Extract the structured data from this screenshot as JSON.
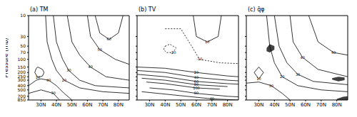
{
  "chart_data": [
    {
      "type": "contour",
      "title": "(a) TM",
      "ylabel": "Pressure (mb)",
      "log": "y",
      "xlim": [
        22,
        87
      ],
      "ylim": [
        10,
        850
      ],
      "xticks": [
        {
          "value": 30,
          "label": "30N"
        },
        {
          "value": 40,
          "label": "40N"
        },
        {
          "value": 50,
          "label": "50N"
        },
        {
          "value": 60,
          "label": "60N"
        },
        {
          "value": 70,
          "label": "70N"
        },
        {
          "value": 80,
          "label": "80N"
        }
      ],
      "yticks": [
        10,
        30,
        50,
        70,
        100,
        150,
        200,
        250,
        300,
        400,
        500,
        700,
        850
      ],
      "color": "#000000",
      "series": [
        {
          "level": 10,
          "line_style": "solid",
          "lat": [
            28,
            31,
            32,
            31,
            28,
            26,
            27,
            28
          ],
          "p": [
            150,
            170,
            200,
            240,
            260,
            200,
            160,
            150
          ]
        },
        {
          "level": 20,
          "line_style": "solid",
          "lat": [
            33,
            34,
            37,
            40,
            45,
            55,
            70,
            87
          ],
          "p": [
            10,
            40,
            100,
            180,
            300,
            450,
            550,
            600
          ]
        },
        {
          "level": 30,
          "line_style": "solid",
          "lat": [
            38,
            40,
            44,
            48,
            55,
            65,
            87
          ],
          "p": [
            10,
            40,
            100,
            180,
            300,
            400,
            450
          ]
        },
        {
          "level": 40,
          "line_style": "solid",
          "lat": [
            47,
            50,
            55,
            62,
            72,
            87
          ],
          "p": [
            10,
            40,
            80,
            150,
            250,
            300
          ]
        },
        {
          "level": 50,
          "line_style": "solid",
          "lat": [
            60,
            62,
            68,
            78,
            87
          ],
          "p": [
            10,
            30,
            60,
            100,
            130
          ]
        },
        {
          "level": 60,
          "line_style": "solid",
          "lat": [
            65,
            68,
            74,
            80,
            83
          ],
          "p": [
            10,
            25,
            35,
            25,
            10
          ]
        },
        {
          "level": 40,
          "line_style": "solid",
          "lat": [
            22,
            27,
            30,
            35,
            40,
            45,
            50
          ],
          "p": [
            400,
            300,
            280,
            300,
            400,
            600,
            850
          ]
        },
        {
          "level": 30,
          "line_style": "solid",
          "lat": [
            22,
            30,
            38,
            42
          ],
          "p": [
            600,
            500,
            600,
            850
          ]
        }
      ]
    },
    {
      "type": "contour",
      "title": "(b) TV",
      "log": "y",
      "tick_labels": "x",
      "xlim": [
        22,
        87
      ],
      "ylim": [
        10,
        850
      ],
      "xticks": [
        {
          "value": 30,
          "label": "30N"
        },
        {
          "value": 40,
          "label": "40N"
        },
        {
          "value": 50,
          "label": "50N"
        },
        {
          "value": 60,
          "label": "60N"
        },
        {
          "value": 70,
          "label": "70N"
        },
        {
          "value": 80,
          "label": "80N"
        }
      ],
      "yticks": [
        10,
        30,
        50,
        70,
        100,
        150,
        200,
        250,
        300,
        400,
        500,
        700,
        850
      ],
      "color": "#000000",
      "series": [
        {
          "level": -20,
          "line_style": "dashed",
          "lat": [
            40,
            43,
            47,
            45,
            41,
            39,
            40
          ],
          "p": [
            50,
            45,
            55,
            70,
            70,
            60,
            50
          ]
        },
        {
          "level": -10,
          "line_style": "dashed",
          "lat": [
            40,
            50,
            57,
            62,
            75,
            87
          ],
          "p": [
            20,
            20,
            50,
            100,
            120,
            125
          ]
        },
        {
          "level": 10,
          "line_style": "solid",
          "lat": [
            58,
            60,
            67,
            74,
            76
          ],
          "p": [
            10,
            30,
            40,
            30,
            10
          ]
        },
        {
          "level": 20,
          "line_style": "solid",
          "lat": [
            22,
            40,
            60,
            80,
            87
          ],
          "p": [
            150,
            160,
            200,
            240,
            250
          ]
        },
        {
          "level": 40,
          "line_style": "solid",
          "lat": [
            22,
            40,
            60,
            80,
            87
          ],
          "p": [
            180,
            200,
            260,
            300,
            310
          ]
        },
        {
          "level": 60,
          "line_style": "solid",
          "lat": [
            22,
            40,
            60,
            80,
            87
          ],
          "p": [
            220,
            250,
            320,
            360,
            370
          ]
        },
        {
          "level": 80,
          "line_style": "solid",
          "lat": [
            25,
            40,
            60,
            80
          ],
          "p": [
            270,
            300,
            380,
            420
          ]
        },
        {
          "level": 100,
          "line_style": "solid",
          "lat": [
            28,
            40,
            60,
            75
          ],
          "p": [
            330,
            360,
            450,
            480
          ]
        },
        {
          "level": 80,
          "line_style": "solid",
          "lat": [
            30,
            45,
            60,
            80,
            87
          ],
          "p": [
            450,
            500,
            600,
            700,
            720
          ]
        },
        {
          "level": 40,
          "line_style": "solid",
          "lat": [
            25,
            45,
            70,
            87
          ],
          "p": [
            550,
            650,
            800,
            850
          ]
        }
      ]
    },
    {
      "type": "contour",
      "title": "(c) q̄φ",
      "log": "y",
      "tick_labels": "x",
      "xlim": [
        22,
        87
      ],
      "ylim": [
        10,
        850
      ],
      "xticks": [
        {
          "value": 30,
          "label": "30N"
        },
        {
          "value": 40,
          "label": "40N"
        },
        {
          "value": 50,
          "label": "50N"
        },
        {
          "value": 60,
          "label": "60N"
        },
        {
          "value": 70,
          "label": "70N"
        },
        {
          "value": 80,
          "label": "80N"
        }
      ],
      "yticks": [
        10,
        30,
        50,
        70,
        100,
        150,
        200,
        250,
        300,
        400,
        500,
        700,
        850
      ],
      "color": "#000000",
      "series": [
        {
          "level": 10,
          "line_style": "solid",
          "lat": [
            30,
            33,
            30,
            27,
            30
          ],
          "p": [
            150,
            200,
            280,
            200,
            150
          ]
        },
        {
          "level": 20,
          "line_style": "solid",
          "lat": [
            35,
            37,
            40,
            45,
            55,
            70,
            87
          ],
          "p": [
            10,
            50,
            120,
            250,
            400,
            500,
            550
          ]
        },
        {
          "level": 30,
          "line_style": "solid",
          "lat": [
            40,
            43,
            48,
            55,
            65,
            87
          ],
          "p": [
            10,
            50,
            120,
            220,
            320,
            380
          ]
        },
        {
          "level": 40,
          "line_style": "solid",
          "lat": [
            50,
            52,
            58,
            68,
            87
          ],
          "p": [
            10,
            40,
            90,
            170,
            250
          ]
        },
        {
          "level": 60,
          "line_style": "solid",
          "lat": [
            62,
            68,
            78,
            87
          ],
          "p": [
            10,
            40,
            70,
            80
          ]
        },
        {
          "level": 30,
          "line_style": "solid",
          "lat": [
            22,
            30,
            38,
            45,
            50
          ],
          "p": [
            350,
            330,
            400,
            600,
            850
          ]
        }
      ],
      "shaded": [
        {
          "color": "#404040",
          "lat": [
            35,
            37,
            40
          ],
          "p_top": [
            55,
            45,
            50
          ],
          "p_bottom": [
            65,
            70,
            60
          ]
        },
        {
          "color": "#404040",
          "lat": [
            77,
            81,
            85
          ],
          "p_top": [
            270,
            250,
            260
          ],
          "p_bottom": [
            290,
            320,
            300
          ]
        },
        {
          "color": "#404040",
          "lat": [
            80,
            84,
            87
          ],
          "p_top": [
            800,
            720,
            700
          ],
          "p_bottom": [
            850,
            850,
            850
          ]
        }
      ]
    }
  ]
}
